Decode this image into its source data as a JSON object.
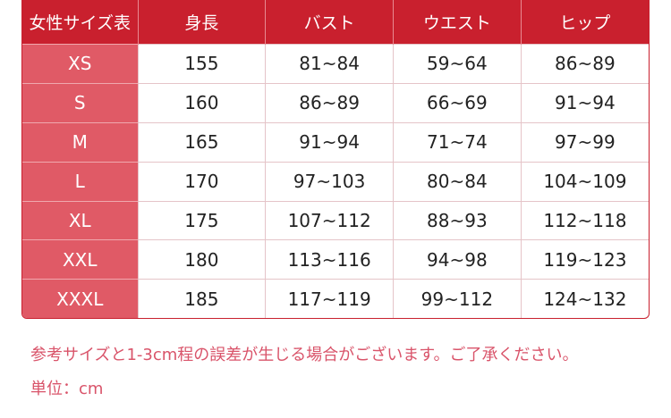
{
  "table": {
    "headers": [
      "女性サイズ表",
      "身長",
      "バスト",
      "ウエスト",
      "ヒップ"
    ],
    "rows": [
      [
        "XS",
        "155",
        "81~84",
        "59~64",
        "86~89"
      ],
      [
        "S",
        "160",
        "86~89",
        "66~69",
        "91~94"
      ],
      [
        "M",
        "165",
        "91~94",
        "71~74",
        "97~99"
      ],
      [
        "L",
        "170",
        "97~103",
        "80~84",
        "104~109"
      ],
      [
        "XL",
        "175",
        "107~112",
        "88~93",
        "112~118"
      ],
      [
        "XXL",
        "180",
        "113~116",
        "94~98",
        "119~123"
      ],
      [
        "XXXL",
        "185",
        "117~119",
        "99~112",
        "124~132"
      ]
    ]
  },
  "notes": {
    "disclaimer": "参考サイズと1-3cm程の誤差が生じる場合がございます。ご了承ください。",
    "unit": "単位：cm"
  },
  "colors": {
    "header": "#c9202e",
    "size_column": "#e05a66",
    "note_text": "#d9546a"
  }
}
